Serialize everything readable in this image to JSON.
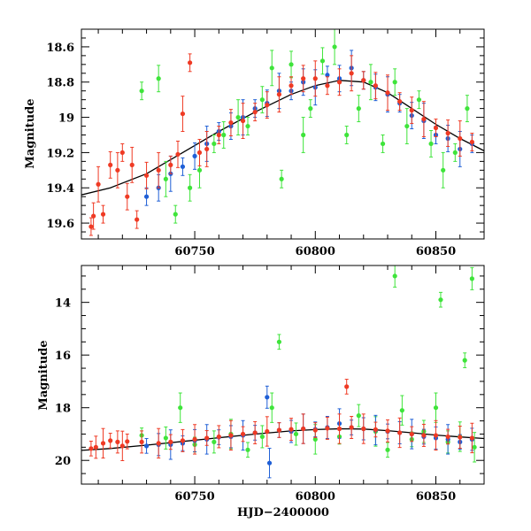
{
  "chart_data": [
    {
      "type": "scatter",
      "panel": "top",
      "title": "",
      "xlabel": "",
      "ylabel": "Magnitude",
      "xlim": [
        60703,
        60870
      ],
      "ylim": [
        19.69,
        18.5
      ],
      "y_inverted": true,
      "x_major_ticks": [
        60750,
        60800,
        60850
      ],
      "x_tick_labels": [
        "60750",
        "60800",
        "60850"
      ],
      "y_major_ticks": [
        18.6,
        18.8,
        19.0,
        19.2,
        19.4,
        19.6
      ],
      "y_tick_labels": [
        "18.6",
        "18.8",
        "19",
        "19.2",
        "19.4",
        "19.6"
      ],
      "grid": false,
      "series": [
        {
          "color": "#ef3a24",
          "points": [
            [
              60707,
              19.62
            ],
            [
              60708,
              19.56
            ],
            [
              60710,
              19.38
            ],
            [
              60712,
              19.55
            ],
            [
              60715,
              19.27
            ],
            [
              60718,
              19.3
            ],
            [
              60720,
              19.2
            ],
            [
              60722,
              19.45
            ],
            [
              60724,
              19.27
            ],
            [
              60726,
              19.58
            ],
            [
              60730,
              19.33
            ],
            [
              60735,
              19.3
            ],
            [
              60740,
              19.27
            ],
            [
              60743,
              19.21
            ],
            [
              60745,
              18.98
            ],
            [
              60748,
              18.69
            ],
            [
              60752,
              19.2
            ],
            [
              60755,
              19.18
            ],
            [
              60760,
              19.1
            ],
            [
              60765,
              19.03
            ],
            [
              60770,
              19.02
            ],
            [
              60775,
              18.97
            ],
            [
              60780,
              18.93
            ],
            [
              60785,
              18.87
            ],
            [
              60790,
              18.82
            ],
            [
              60795,
              18.78
            ],
            [
              60800,
              18.78
            ],
            [
              60805,
              18.82
            ],
            [
              60810,
              18.8
            ],
            [
              60815,
              18.75
            ],
            [
              60820,
              18.79
            ],
            [
              60825,
              18.82
            ],
            [
              60830,
              18.86
            ],
            [
              60835,
              18.91
            ],
            [
              60840,
              18.96
            ],
            [
              60845,
              19.01
            ],
            [
              60850,
              19.06
            ],
            [
              60855,
              19.09
            ],
            [
              60860,
              19.12
            ],
            [
              60865,
              19.14
            ]
          ]
        },
        {
          "color": "#1f5fd6",
          "points": [
            [
              60730,
              19.45
            ],
            [
              60735,
              19.4
            ],
            [
              60740,
              19.32
            ],
            [
              60745,
              19.28
            ],
            [
              60750,
              19.22
            ],
            [
              60755,
              19.15
            ],
            [
              60760,
              19.08
            ],
            [
              60765,
              19.05
            ],
            [
              60770,
              19.0
            ],
            [
              60775,
              18.95
            ],
            [
              60780,
              18.92
            ],
            [
              60785,
              18.85
            ],
            [
              60790,
              18.85
            ],
            [
              60795,
              18.8
            ],
            [
              60800,
              18.83
            ],
            [
              60805,
              18.76
            ],
            [
              60810,
              18.78
            ],
            [
              60815,
              18.72
            ],
            [
              60820,
              18.79
            ],
            [
              60825,
              18.83
            ],
            [
              60830,
              18.87
            ],
            [
              60835,
              18.92
            ],
            [
              60840,
              18.99
            ],
            [
              60845,
              19.02
            ],
            [
              60850,
              19.1
            ],
            [
              60855,
              19.12
            ],
            [
              60860,
              19.18
            ],
            [
              60865,
              19.15
            ]
          ]
        },
        {
          "color": "#3ee43a",
          "points": [
            [
              60728,
              18.85
            ],
            [
              60735,
              18.78
            ],
            [
              60738,
              19.35
            ],
            [
              60742,
              19.55
            ],
            [
              60748,
              19.4
            ],
            [
              60752,
              19.3
            ],
            [
              60758,
              19.15
            ],
            [
              60762,
              19.1
            ],
            [
              60768,
              19.0
            ],
            [
              60772,
              19.05
            ],
            [
              60778,
              18.9
            ],
            [
              60782,
              18.72
            ],
            [
              60786,
              19.35
            ],
            [
              60790,
              18.7
            ],
            [
              60795,
              19.1
            ],
            [
              60798,
              18.95
            ],
            [
              60803,
              18.68
            ],
            [
              60808,
              18.6
            ],
            [
              60813,
              19.1
            ],
            [
              60818,
              18.95
            ],
            [
              60823,
              18.8
            ],
            [
              60828,
              19.15
            ],
            [
              60833,
              18.8
            ],
            [
              60838,
              19.05
            ],
            [
              60843,
              18.9
            ],
            [
              60848,
              19.15
            ],
            [
              60853,
              19.3
            ],
            [
              60858,
              19.2
            ],
            [
              60863,
              18.95
            ]
          ]
        }
      ],
      "model_curve": [
        [
          60703,
          19.44
        ],
        [
          60715,
          19.4
        ],
        [
          60730,
          19.32
        ],
        [
          60745,
          19.2
        ],
        [
          60760,
          19.08
        ],
        [
          60775,
          18.97
        ],
        [
          60790,
          18.87
        ],
        [
          60800,
          18.82
        ],
        [
          60810,
          18.79
        ],
        [
          60820,
          18.8
        ],
        [
          60830,
          18.86
        ],
        [
          60840,
          18.95
        ],
        [
          60850,
          19.04
        ],
        [
          60860,
          19.12
        ],
        [
          60870,
          19.19
        ]
      ]
    },
    {
      "type": "scatter",
      "panel": "bottom",
      "title": "",
      "xlabel": "HJD−2400000",
      "ylabel": "Magnitude",
      "xlim": [
        60703,
        60870
      ],
      "ylim": [
        20.9,
        12.6
      ],
      "y_inverted": true,
      "x_major_ticks": [
        60750,
        60800,
        60850
      ],
      "x_tick_labels": [
        "60750",
        "60800",
        "60850"
      ],
      "y_major_ticks": [
        14,
        16,
        18,
        20
      ],
      "y_tick_labels": [
        "14",
        "16",
        "18",
        "20"
      ],
      "grid": false,
      "series": [
        {
          "color": "#ef3a24",
          "points": [
            [
              60707,
              19.55
            ],
            [
              60709,
              19.5
            ],
            [
              60712,
              19.35
            ],
            [
              60715,
              19.25
            ],
            [
              60718,
              19.3
            ],
            [
              60720,
              19.45
            ],
            [
              60722,
              19.28
            ],
            [
              60728,
              19.3
            ],
            [
              60735,
              19.35
            ],
            [
              60740,
              19.3
            ],
            [
              60745,
              19.25
            ],
            [
              60750,
              19.2
            ],
            [
              60755,
              19.15
            ],
            [
              60760,
              19.1
            ],
            [
              60765,
              19.05
            ],
            [
              60770,
              19.0
            ],
            [
              60775,
              18.95
            ],
            [
              60780,
              18.9
            ],
            [
              60785,
              18.85
            ],
            [
              60790,
              18.82
            ],
            [
              60795,
              18.8
            ],
            [
              60800,
              18.85
            ],
            [
              60805,
              18.78
            ],
            [
              60810,
              18.8
            ],
            [
              60813,
              17.2
            ],
            [
              60815,
              18.75
            ],
            [
              60820,
              18.8
            ],
            [
              60825,
              18.83
            ],
            [
              60830,
              18.88
            ],
            [
              60835,
              18.95
            ],
            [
              60840,
              19.0
            ],
            [
              60845,
              19.05
            ],
            [
              60850,
              19.05
            ],
            [
              60855,
              19.1
            ],
            [
              60860,
              19.12
            ],
            [
              60865,
              19.15
            ]
          ]
        },
        {
          "color": "#1f5fd6",
          "points": [
            [
              60730,
              19.45
            ],
            [
              60735,
              19.4
            ],
            [
              60740,
              19.4
            ],
            [
              60745,
              19.35
            ],
            [
              60750,
              19.25
            ],
            [
              60755,
              19.2
            ],
            [
              60760,
              19.12
            ],
            [
              60765,
              19.1
            ],
            [
              60770,
              19.05
            ],
            [
              60775,
              18.95
            ],
            [
              60780,
              17.6
            ],
            [
              60781,
              20.1
            ],
            [
              60785,
              18.85
            ],
            [
              60790,
              18.9
            ],
            [
              60795,
              18.8
            ],
            [
              60800,
              18.82
            ],
            [
              60805,
              18.75
            ],
            [
              60810,
              18.6
            ],
            [
              60815,
              18.75
            ],
            [
              60820,
              18.8
            ],
            [
              60825,
              18.85
            ],
            [
              60830,
              18.9
            ],
            [
              60835,
              18.95
            ],
            [
              60840,
              19.0
            ],
            [
              60845,
              19.1
            ],
            [
              60850,
              19.15
            ],
            [
              60855,
              19.2
            ],
            [
              60860,
              19.3
            ],
            [
              60865,
              19.2
            ]
          ]
        },
        {
          "color": "#3ee43a",
          "points": [
            [
              60728,
              19.05
            ],
            [
              60738,
              19.15
            ],
            [
              60744,
              18.0
            ],
            [
              60750,
              19.4
            ],
            [
              60758,
              19.3
            ],
            [
              60765,
              19.0
            ],
            [
              60772,
              19.6
            ],
            [
              60778,
              19.1
            ],
            [
              60782,
              18.0
            ],
            [
              60785,
              15.5
            ],
            [
              60792,
              19.0
            ],
            [
              60800,
              19.2
            ],
            [
              60810,
              19.1
            ],
            [
              60818,
              18.3
            ],
            [
              60825,
              18.9
            ],
            [
              60830,
              19.6
            ],
            [
              60833,
              13.0
            ],
            [
              60836,
              18.1
            ],
            [
              60840,
              19.2
            ],
            [
              60845,
              18.9
            ],
            [
              60850,
              18.0
            ],
            [
              60852,
              13.9
            ],
            [
              60855,
              19.3
            ],
            [
              60860,
              19.1
            ],
            [
              60862,
              16.2
            ],
            [
              60865,
              13.1
            ],
            [
              60866,
              19.5
            ]
          ]
        }
      ],
      "model_curve": [
        [
          60703,
          19.62
        ],
        [
          60715,
          19.55
        ],
        [
          60730,
          19.42
        ],
        [
          60745,
          19.28
        ],
        [
          60760,
          19.14
        ],
        [
          60775,
          19.0
        ],
        [
          60790,
          18.88
        ],
        [
          60800,
          18.83
        ],
        [
          60810,
          18.8
        ],
        [
          60820,
          18.81
        ],
        [
          60830,
          18.87
        ],
        [
          60840,
          18.95
        ],
        [
          60850,
          19.04
        ],
        [
          60860,
          19.11
        ],
        [
          60870,
          19.17
        ]
      ]
    }
  ]
}
